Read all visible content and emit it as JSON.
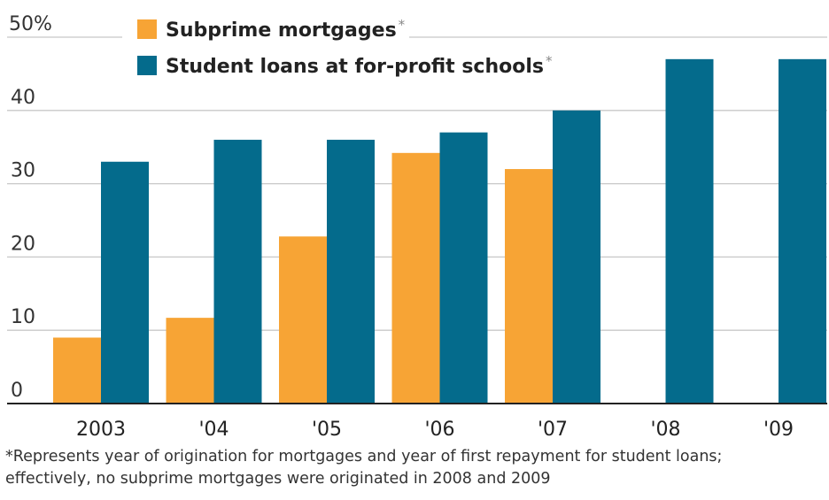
{
  "chart_data": {
    "type": "bar",
    "categories": [
      "2003",
      "'04",
      "'05",
      "'06",
      "'07",
      "'08",
      "'09"
    ],
    "series": [
      {
        "name": "Subprime mortgages",
        "marker": "*",
        "color": "#F7A435",
        "values": [
          9,
          11.7,
          22.8,
          34.2,
          32,
          null,
          null
        ]
      },
      {
        "name": "Student loans at for-profit schools",
        "marker": "*",
        "color": "#046B8C",
        "values": [
          33,
          36,
          36,
          37,
          40,
          47,
          47
        ]
      }
    ],
    "y_ticks": [
      0,
      10,
      20,
      30,
      40
    ],
    "y_top_label": "50%",
    "ylim": [
      0,
      50
    ],
    "grid": true,
    "legend_position": "top-left",
    "title": "",
    "xlabel": "",
    "ylabel": ""
  },
  "footnote": {
    "line1": "*Represents year of origination for mortgages and year of first repayment for student loans;",
    "line2": "effectively, no subprime mortgages were originated in 2008 and 2009"
  }
}
